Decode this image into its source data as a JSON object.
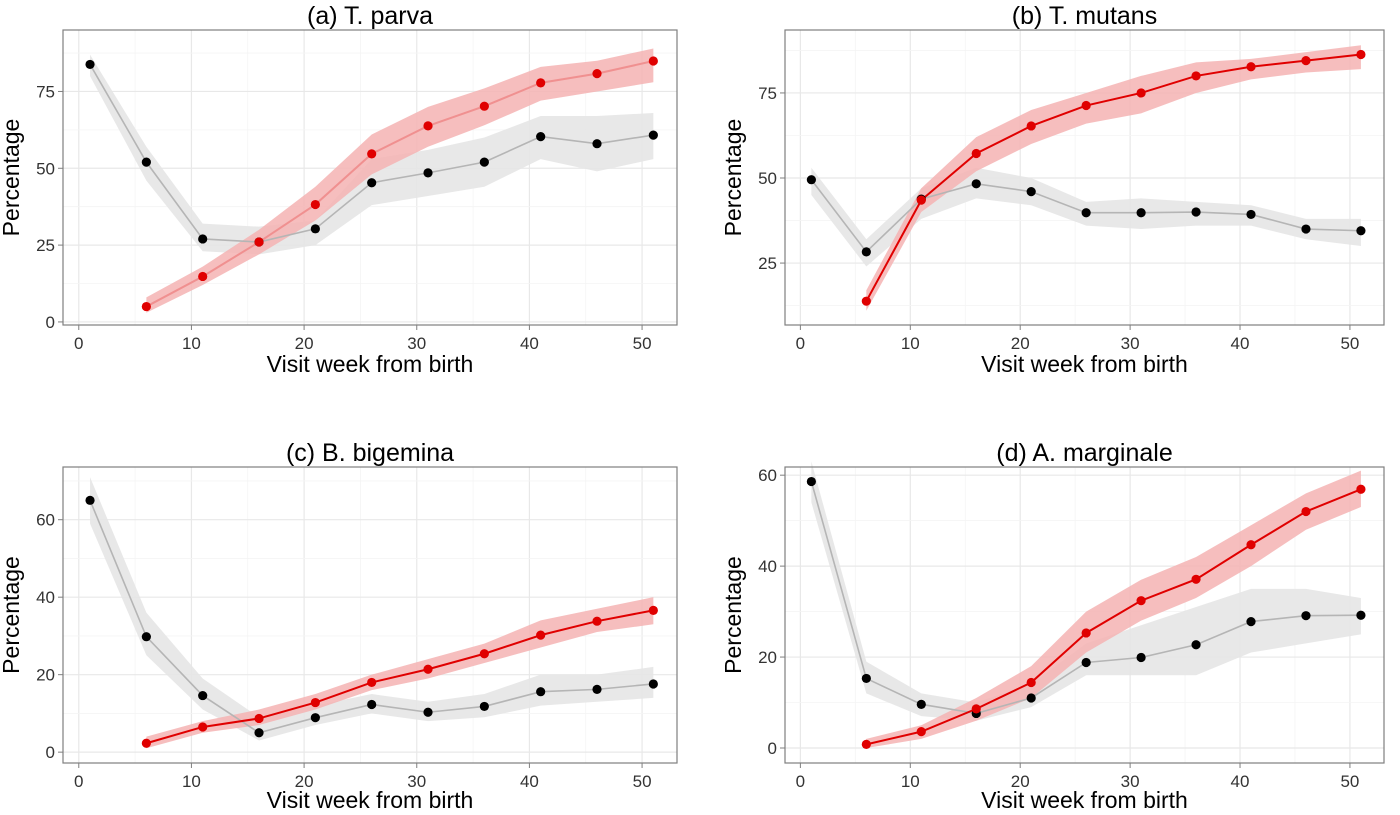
{
  "chart_data": [
    {
      "type": "line",
      "title": "(a) T. parva",
      "xlabel": "Visit week from birth",
      "ylabel": "Percentage",
      "xlim": [
        -1.4,
        53.1
      ],
      "ylim": [
        -1,
        95
      ],
      "xticks": [
        0,
        10,
        20,
        30,
        40,
        50
      ],
      "yticks": [
        0,
        25,
        50,
        75
      ],
      "grid": true,
      "series": [
        {
          "color": "#000000",
          "line_color": "#b5b5b5",
          "band_color": "#e6e6e6",
          "x": [
            1,
            6,
            11,
            16,
            21,
            26,
            31,
            36,
            41,
            46,
            51
          ],
          "values": [
            83.8,
            52,
            27,
            26,
            30.3,
            45.3,
            48.5,
            52,
            60.3,
            58,
            60.8
          ],
          "lower": [
            80,
            46,
            23,
            22,
            25,
            38,
            41,
            44,
            53,
            49,
            53
          ],
          "upper": [
            87,
            57,
            32,
            31,
            33,
            53,
            56,
            60,
            67,
            67,
            68
          ]
        },
        {
          "color": "#e00000",
          "line_color": "#f09090",
          "band_color": "#f4b3b3",
          "x": [
            6,
            11,
            16,
            21,
            26,
            31,
            36,
            41,
            46,
            51
          ],
          "values": [
            5,
            14.8,
            26,
            38.2,
            54.7,
            63.8,
            70.2,
            77.8,
            80.8,
            84.9
          ],
          "lower": [
            3,
            12,
            22,
            33,
            48,
            57,
            64,
            72,
            75,
            78
          ],
          "upper": [
            8,
            18,
            30,
            44,
            61,
            70,
            76,
            83,
            85,
            89
          ]
        }
      ]
    },
    {
      "type": "line",
      "title": "(b) T. mutans",
      "xlabel": "Visit week from birth",
      "ylabel": "Percentage",
      "xlim": [
        -1.4,
        53.1
      ],
      "ylim": [
        6.8,
        93.5
      ],
      "xticks": [
        0,
        10,
        20,
        30,
        40,
        50
      ],
      "yticks": [
        25,
        50,
        75
      ],
      "grid": true,
      "series": [
        {
          "color": "#000000",
          "line_color": "#b5b5b5",
          "band_color": "#e6e6e6",
          "x": [
            1,
            6,
            11,
            16,
            21,
            26,
            31,
            36,
            41,
            46,
            51
          ],
          "values": [
            49.5,
            28.3,
            43.8,
            48.3,
            46,
            39.8,
            39.8,
            40,
            39.3,
            35,
            34.5
          ],
          "lower": [
            45,
            24,
            38,
            44,
            42,
            36,
            35,
            36,
            36,
            32,
            30
          ],
          "upper": [
            53,
            32,
            47,
            53,
            50,
            43,
            44,
            43,
            42,
            38,
            38
          ]
        },
        {
          "color": "#e00000",
          "line_color": "#e00000",
          "band_color": "#f4b3b3",
          "x": [
            6,
            11,
            16,
            21,
            26,
            31,
            36,
            41,
            46,
            51
          ],
          "values": [
            13.8,
            43.5,
            57.2,
            65.3,
            71.3,
            75,
            80,
            82.7,
            84.5,
            86.3
          ],
          "lower": [
            11,
            40,
            52,
            60,
            66,
            69,
            75,
            79,
            81,
            82
          ],
          "upper": [
            17,
            47,
            62,
            70,
            75,
            80,
            84,
            85,
            87,
            89
          ]
        }
      ]
    },
    {
      "type": "line",
      "title": "(c) B. bigemina",
      "xlabel": "Visit week from birth",
      "ylabel": "Percentage",
      "xlim": [
        -1.4,
        53.1
      ],
      "ylim": [
        -2.8,
        73.6
      ],
      "xticks": [
        0,
        10,
        20,
        30,
        40,
        50
      ],
      "yticks": [
        0,
        20,
        40,
        60
      ],
      "grid": true,
      "series": [
        {
          "color": "#000000",
          "line_color": "#b5b5b5",
          "band_color": "#e6e6e6",
          "x": [
            1,
            6,
            11,
            16,
            21,
            26,
            31,
            36,
            41,
            46,
            51
          ],
          "values": [
            65,
            29.8,
            14.6,
            5,
            8.9,
            12.3,
            10.3,
            11.8,
            15.6,
            16.2,
            17.6
          ],
          "lower": [
            59,
            25,
            11,
            3,
            7,
            10,
            8,
            9,
            12,
            13,
            14
          ],
          "upper": [
            71,
            36,
            19,
            9,
            12,
            15,
            13,
            15,
            20,
            20,
            22
          ]
        },
        {
          "color": "#e00000",
          "line_color": "#e00000",
          "band_color": "#f4b3b3",
          "x": [
            6,
            11,
            16,
            21,
            26,
            31,
            36,
            41,
            46,
            51
          ],
          "values": [
            2.3,
            6.5,
            8.7,
            12.8,
            18,
            21.4,
            25.4,
            30.2,
            33.8,
            36.6
          ],
          "lower": [
            1,
            5,
            7,
            11,
            16,
            19,
            23,
            27,
            31,
            33
          ],
          "upper": [
            4,
            8,
            11,
            15,
            20,
            24,
            28,
            34,
            37,
            40
          ]
        }
      ]
    },
    {
      "type": "line",
      "title": "(d) A. marginale",
      "xlabel": "Visit week from birth",
      "ylabel": "Percentage",
      "xlim": [
        -1.4,
        53.1
      ],
      "ylim": [
        -3.3,
        61.8
      ],
      "xticks": [
        0,
        10,
        20,
        30,
        40,
        50
      ],
      "yticks": [
        0,
        20,
        40,
        60
      ],
      "grid": true,
      "series": [
        {
          "color": "#000000",
          "line_color": "#b5b5b5",
          "band_color": "#e6e6e6",
          "x": [
            1,
            6,
            11,
            16,
            21,
            26,
            31,
            36,
            41,
            46,
            51
          ],
          "values": [
            58.6,
            15.3,
            9.6,
            7.6,
            11,
            18.8,
            19.9,
            22.7,
            27.8,
            29.1,
            29.2
          ],
          "lower": [
            54,
            12,
            7,
            6,
            9,
            16,
            16,
            16,
            21,
            23,
            25
          ],
          "upper": [
            63,
            19,
            12,
            10,
            14,
            23,
            27,
            31,
            35,
            35,
            33
          ]
        },
        {
          "color": "#e00000",
          "line_color": "#e00000",
          "band_color": "#f4b3b3",
          "x": [
            6,
            11,
            16,
            21,
            26,
            31,
            36,
            41,
            46,
            51
          ],
          "values": [
            0.8,
            3.6,
            8.6,
            14.4,
            25.3,
            32.4,
            37.1,
            44.7,
            52,
            56.9
          ],
          "lower": [
            0,
            2,
            6,
            11,
            21,
            28,
            33,
            40,
            48,
            53
          ],
          "upper": [
            2,
            5,
            11,
            18,
            30,
            37,
            42,
            49,
            56,
            61
          ]
        }
      ]
    }
  ]
}
